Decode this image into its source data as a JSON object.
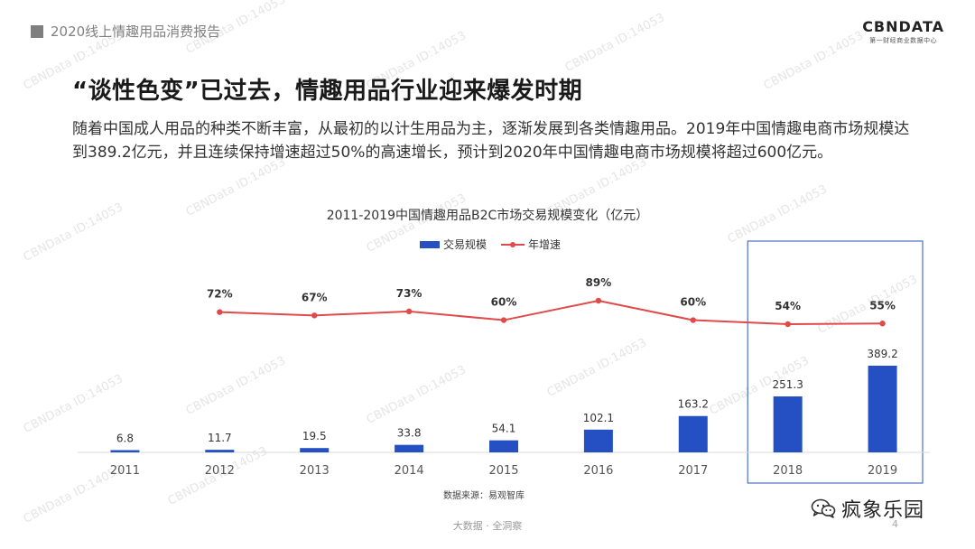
{
  "header": {
    "report_title": "2020线上情趣用品消费报告"
  },
  "logo": {
    "main": "CBNDATA",
    "sub": "第一财经商业数据中心"
  },
  "slide": {
    "title": "“谈性色变”已过去，情趣用品行业迎来爆发时期",
    "paragraph": "随着中国成人用品的种类不断丰富，从最初的以计生用品为主，逐渐发展到各类情趣用品。2019年中国情趣电商市场规模达到389.2亿元，并且连续保持增速超过50%的高速增长，预计到2020年中国情趣电商市场规模将超过600亿元。"
  },
  "chart_data": {
    "type": "bar",
    "title": "2011-2019中国情趣用品B2C市场交易规模变化（亿元）",
    "categories": [
      "2011",
      "2012",
      "2013",
      "2014",
      "2015",
      "2016",
      "2017",
      "2018",
      "2019"
    ],
    "series": [
      {
        "name": "交易规模",
        "type": "bar",
        "values": [
          6.8,
          11.7,
          19.5,
          33.8,
          54.1,
          102.1,
          163.2,
          251.3,
          389.2
        ],
        "labels": [
          "6.8",
          "11.7",
          "19.5",
          "33.8",
          "54.1",
          "102.1",
          "163.2",
          "251.3",
          "389.2"
        ]
      },
      {
        "name": "年增速",
        "type": "line",
        "values": [
          null,
          72,
          67,
          73,
          60,
          89,
          60,
          54,
          55
        ],
        "labels": [
          "",
          "72%",
          "67%",
          "73%",
          "60%",
          "89%",
          "60%",
          "54%",
          "55%"
        ]
      }
    ],
    "highlight_categories": [
      "2018",
      "2019"
    ],
    "colors": {
      "bar": "#2550c4",
      "line": "#e04a4a",
      "highlight_box": "#4a6fc9",
      "axis": "#d9d9d9"
    },
    "source": "数据来源：易观智库"
  },
  "watermark": {
    "text": "CBNData ID:14053"
  },
  "footer": {
    "text": "大数据 · 全洞察",
    "page": "4"
  },
  "wechat": {
    "name": "疯象乐园",
    "icon": "wechat-icon"
  }
}
